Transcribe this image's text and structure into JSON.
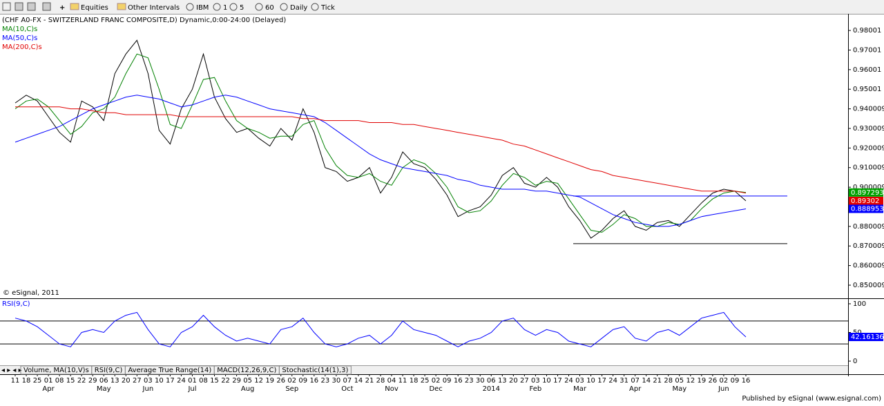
{
  "toolbar": {
    "items": [
      "Equities",
      "Other Intervals",
      "IBM",
      "1",
      "5",
      "60",
      "Daily",
      "Tick"
    ]
  },
  "chart_data": [
    {
      "type": "line",
      "title": "(CHF A0-FX - SWITZERLAND FRANC COMPOSITE,D) Dynamic,0:00-24:00 (Delayed)",
      "watermark": "© eSignal, 2011",
      "categories": [
        "11",
        "18",
        "25",
        "01",
        "08",
        "15",
        "22",
        "29",
        "06",
        "13",
        "20",
        "27",
        "03",
        "10",
        "17",
        "24",
        "01",
        "08",
        "15",
        "22",
        "29",
        "05",
        "12",
        "19",
        "26",
        "02",
        "09",
        "16",
        "23",
        "30",
        "07",
        "14",
        "21",
        "28",
        "04",
        "11",
        "18",
        "25",
        "02",
        "09",
        "16",
        "23",
        "30",
        "06",
        "13",
        "20",
        "27",
        "03",
        "10",
        "17",
        "24",
        "03",
        "10",
        "17",
        "24",
        "31",
        "07",
        "14",
        "21",
        "28",
        "05",
        "12",
        "19",
        "26",
        "02",
        "09",
        "16"
      ],
      "x_groups": [
        {
          "label": "Apr",
          "start": 3
        },
        {
          "label": "May",
          "start": 8
        },
        {
          "label": "Jun",
          "start": 12
        },
        {
          "label": "Jul",
          "start": 16
        },
        {
          "label": "Aug",
          "start": 21
        },
        {
          "label": "Sep",
          "start": 25
        },
        {
          "label": "Oct",
          "start": 30
        },
        {
          "label": "Nov",
          "start": 34
        },
        {
          "label": "Dec",
          "start": 38
        },
        {
          "label": "2014",
          "start": 43
        },
        {
          "label": "Feb",
          "start": 47
        },
        {
          "label": "Mar",
          "start": 51
        },
        {
          "label": "Apr",
          "start": 56
        },
        {
          "label": "May",
          "start": 60
        },
        {
          "label": "Jun",
          "start": 64
        }
      ],
      "ylim": [
        0.8433,
        0.9885
      ],
      "yticks": [
        {
          "value": 0.98,
          "label": "0.98001"
        },
        {
          "value": 0.97,
          "label": "0.97001"
        },
        {
          "value": 0.96,
          "label": "0.96001"
        },
        {
          "value": 0.95,
          "label": "0.95001"
        },
        {
          "value": 0.94,
          "label": "0.940009"
        },
        {
          "value": 0.93,
          "label": "0.930009"
        },
        {
          "value": 0.92,
          "label": "0.920009"
        },
        {
          "value": 0.91,
          "label": "0.910009"
        },
        {
          "value": 0.9,
          "label": "0.900009"
        },
        {
          "value": 0.88,
          "label": "0.880009"
        },
        {
          "value": 0.87,
          "label": "0.870009"
        },
        {
          "value": 0.86,
          "label": "0.860009"
        },
        {
          "value": 0.85,
          "label": "0.850009"
        }
      ],
      "series": [
        {
          "color": "#000000",
          "values": [
            0.943,
            0.947,
            0.944,
            0.936,
            0.928,
            0.923,
            0.944,
            0.941,
            0.934,
            0.958,
            0.968,
            0.975,
            0.958,
            0.929,
            0.922,
            0.94,
            0.95,
            0.968,
            0.946,
            0.935,
            0.928,
            0.93,
            0.925,
            0.921,
            0.93,
            0.924,
            0.94,
            0.928,
            0.91,
            0.908,
            0.903,
            0.905,
            0.91,
            0.897,
            0.905,
            0.918,
            0.912,
            0.91,
            0.904,
            0.896,
            0.885,
            0.888,
            0.89,
            0.896,
            0.906,
            0.91,
            0.902,
            0.9,
            0.905,
            0.9,
            0.89,
            0.883,
            0.874,
            0.878,
            0.884,
            0.888,
            0.88,
            0.878,
            0.882,
            0.883,
            0.88,
            0.886,
            0.892,
            0.897,
            0.899,
            0.898,
            0.89302
          ],
          "last_label": "0.89302",
          "label_color": "#e00000"
        },
        {
          "name": "MA(10,C)s",
          "color": "#008000",
          "values": [
            0.94,
            0.944,
            0.945,
            0.941,
            0.934,
            0.927,
            0.931,
            0.938,
            0.94,
            0.946,
            0.958,
            0.968,
            0.966,
            0.95,
            0.932,
            0.93,
            0.942,
            0.955,
            0.956,
            0.944,
            0.934,
            0.93,
            0.928,
            0.925,
            0.926,
            0.926,
            0.932,
            0.934,
            0.92,
            0.911,
            0.906,
            0.905,
            0.907,
            0.903,
            0.901,
            0.91,
            0.914,
            0.912,
            0.907,
            0.9,
            0.89,
            0.887,
            0.888,
            0.893,
            0.901,
            0.907,
            0.905,
            0.901,
            0.903,
            0.902,
            0.894,
            0.886,
            0.878,
            0.877,
            0.881,
            0.886,
            0.884,
            0.88,
            0.88,
            0.882,
            0.881,
            0.883,
            0.889,
            0.894,
            0.897,
            0.898,
            0.897293
          ],
          "last_label": "0.897293",
          "label_color": "#00a000"
        },
        {
          "name": "MA(50,C)s",
          "color": "#0000ff",
          "values": [
            0.923,
            0.925,
            0.927,
            0.929,
            0.931,
            0.934,
            0.937,
            0.94,
            0.942,
            0.944,
            0.946,
            0.947,
            0.946,
            0.945,
            0.943,
            0.941,
            0.942,
            0.944,
            0.946,
            0.947,
            0.946,
            0.944,
            0.942,
            0.94,
            0.939,
            0.938,
            0.937,
            0.936,
            0.933,
            0.929,
            0.925,
            0.921,
            0.917,
            0.914,
            0.912,
            0.91,
            0.909,
            0.908,
            0.907,
            0.906,
            0.904,
            0.903,
            0.901,
            0.9,
            0.899,
            0.899,
            0.899,
            0.898,
            0.898,
            0.897,
            0.896,
            0.895,
            0.892,
            0.889,
            0.886,
            0.884,
            0.882,
            0.881,
            0.88,
            0.88,
            0.881,
            0.883,
            0.885,
            0.886,
            0.887,
            0.888,
            0.888953
          ],
          "last_label": "0.888953",
          "label_color": "#0000ff"
        },
        {
          "name": "MA(200,C)s",
          "color": "#e00000",
          "values": [
            0.941,
            0.941,
            0.941,
            0.941,
            0.941,
            0.94,
            0.94,
            0.939,
            0.938,
            0.938,
            0.937,
            0.937,
            0.937,
            0.937,
            0.937,
            0.936,
            0.936,
            0.936,
            0.936,
            0.936,
            0.936,
            0.936,
            0.936,
            0.936,
            0.936,
            0.936,
            0.935,
            0.935,
            0.934,
            0.934,
            0.934,
            0.934,
            0.933,
            0.933,
            0.933,
            0.932,
            0.932,
            0.931,
            0.93,
            0.929,
            0.928,
            0.927,
            0.926,
            0.925,
            0.924,
            0.922,
            0.921,
            0.919,
            0.917,
            0.915,
            0.913,
            0.911,
            0.909,
            0.908,
            0.906,
            0.905,
            0.904,
            0.903,
            0.902,
            0.901,
            0.9,
            0.899,
            0.898,
            0.898,
            0.898,
            0.898,
            0.897
          ]
        }
      ],
      "levels": [
        {
          "value": 0.8955,
          "color": "#0000ff"
        },
        {
          "value": 0.8712,
          "color": "#000000"
        }
      ]
    },
    {
      "type": "line",
      "title": "RSI(9,C)",
      "ylim": [
        -6,
        108.4
      ],
      "yticks": [
        100,
        50,
        0
      ],
      "levels": [
        70,
        30
      ],
      "series": [
        {
          "color": "#0000ff",
          "values": [
            75,
            70,
            60,
            45,
            30,
            25,
            50,
            55,
            50,
            70,
            80,
            85,
            55,
            30,
            25,
            50,
            60,
            80,
            60,
            45,
            35,
            40,
            35,
            30,
            55,
            60,
            75,
            50,
            30,
            25,
            30,
            40,
            45,
            30,
            45,
            70,
            55,
            50,
            45,
            35,
            25,
            35,
            40,
            50,
            70,
            75,
            55,
            45,
            55,
            50,
            35,
            30,
            25,
            40,
            55,
            60,
            40,
            35,
            50,
            55,
            45,
            60,
            75,
            80,
            85,
            60,
            42.16136
          ],
          "last_label": "42.16136",
          "label_color": "#0000ff"
        }
      ]
    }
  ],
  "tabs": [
    "Volume, MA(10,V)s",
    "RSI(9,C)",
    "Average True Range(14)",
    "MACD(12,26,9,C)",
    "Stochastic(14(1),3)"
  ],
  "footer": "Published by eSignal (www.esignal.com)"
}
